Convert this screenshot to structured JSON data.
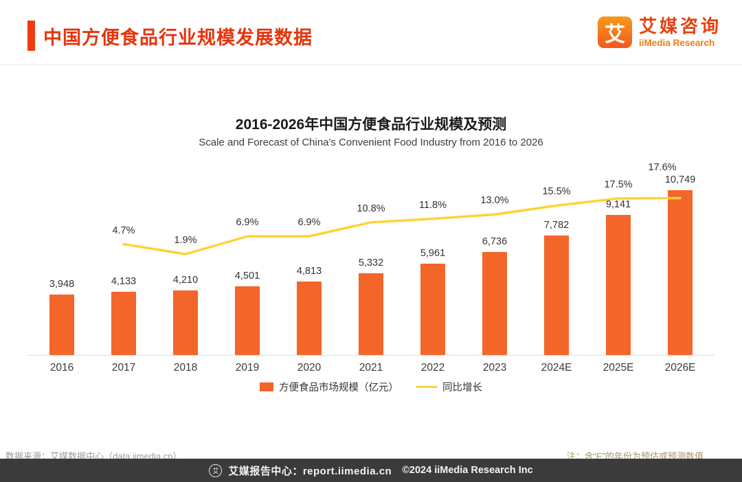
{
  "header": {
    "title": "中国方便食品行业规模发展数据",
    "logo": {
      "mark": "艾",
      "name_cn": "艾媒咨询",
      "name_en": "iiMedia Research"
    }
  },
  "chart_data": {
    "type": "bar",
    "title": "2016-2026年中国方便食品行业规模及预测",
    "subtitle": "Scale and Forecast of China's Convenient Food Industry from 2016 to 2026",
    "categories": [
      "2016",
      "2017",
      "2018",
      "2019",
      "2020",
      "2021",
      "2022",
      "2023",
      "2024E",
      "2025E",
      "2026E"
    ],
    "series": [
      {
        "name": "方便食品市场规模（亿元）",
        "type": "bar",
        "color": "#F4652A",
        "values": [
          3948,
          4133,
          4210,
          4501,
          4813,
          5332,
          5961,
          6736,
          7782,
          9141,
          10749
        ],
        "labels": [
          "3,948",
          "4,133",
          "4,210",
          "4,501",
          "4,813",
          "5,332",
          "5,961",
          "6,736",
          "7,782",
          "9,141",
          "10,749"
        ]
      },
      {
        "name": "同比增长",
        "type": "line",
        "color": "#FFD234",
        "values": [
          null,
          4.7,
          1.9,
          6.9,
          6.9,
          10.8,
          11.8,
          13.0,
          15.5,
          17.5,
          17.6
        ],
        "labels": [
          "",
          "4.7%",
          "1.9%",
          "6.9%",
          "6.9%",
          "10.8%",
          "11.8%",
          "13.0%",
          "15.5%",
          "17.5%",
          "17.6%"
        ]
      }
    ],
    "ylim": [
      0,
      12000
    ],
    "grid": false,
    "legend_position": "bottom"
  },
  "footer": {
    "source": "数据来源：艾媒数据中心（data.iimedia.cn）",
    "note": "注：含“E”的年份为预估或预测数值",
    "bottombar": {
      "report": "艾媒报告中心：report.iimedia.cn",
      "copyright": "©2024  iiMedia Research Inc"
    }
  }
}
